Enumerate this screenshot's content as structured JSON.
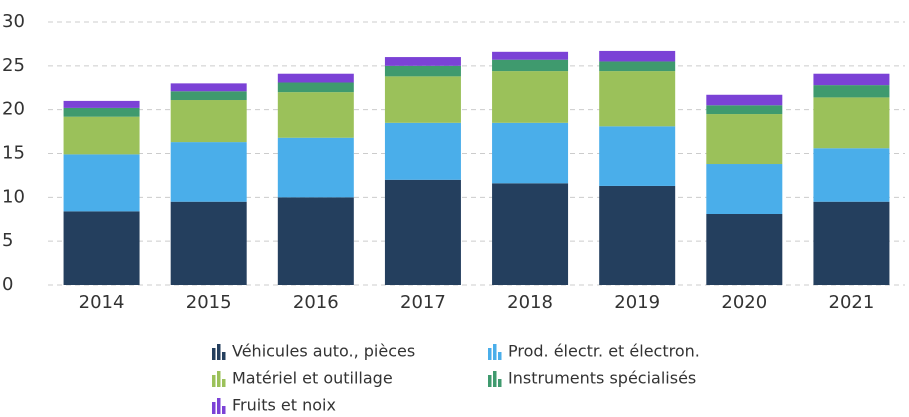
{
  "chart_data": {
    "type": "stacked_bar",
    "categories": [
      "2014",
      "2015",
      "2016",
      "2017",
      "2018",
      "2019",
      "2020",
      "2021"
    ],
    "series": [
      {
        "name": "Véhicules auto., pièces",
        "color": "#243f5e",
        "values": [
          8.4,
          9.5,
          10.0,
          12.0,
          11.6,
          11.3,
          8.1,
          9.5
        ]
      },
      {
        "name": "Prod. électr. et électron.",
        "color": "#4aaeea",
        "values": [
          6.5,
          6.8,
          6.8,
          6.5,
          6.9,
          6.8,
          5.7,
          6.1
        ]
      },
      {
        "name": "Matériel et outillage",
        "color": "#9bc15a",
        "values": [
          4.3,
          4.8,
          5.2,
          5.3,
          5.9,
          6.3,
          5.7,
          5.8
        ]
      },
      {
        "name": "Instruments spécialisés",
        "color": "#3f9a6e",
        "values": [
          1.0,
          1.0,
          1.1,
          1.2,
          1.3,
          1.1,
          1.0,
          1.4
        ]
      },
      {
        "name": "Fruits et noix",
        "color": "#7b42d6",
        "values": [
          0.8,
          0.9,
          1.0,
          1.0,
          0.9,
          1.2,
          1.2,
          1.3
        ]
      }
    ],
    "ylim": [
      0,
      30
    ],
    "yticks": [
      0,
      5,
      10,
      15,
      20,
      25,
      30
    ],
    "grid": true
  }
}
